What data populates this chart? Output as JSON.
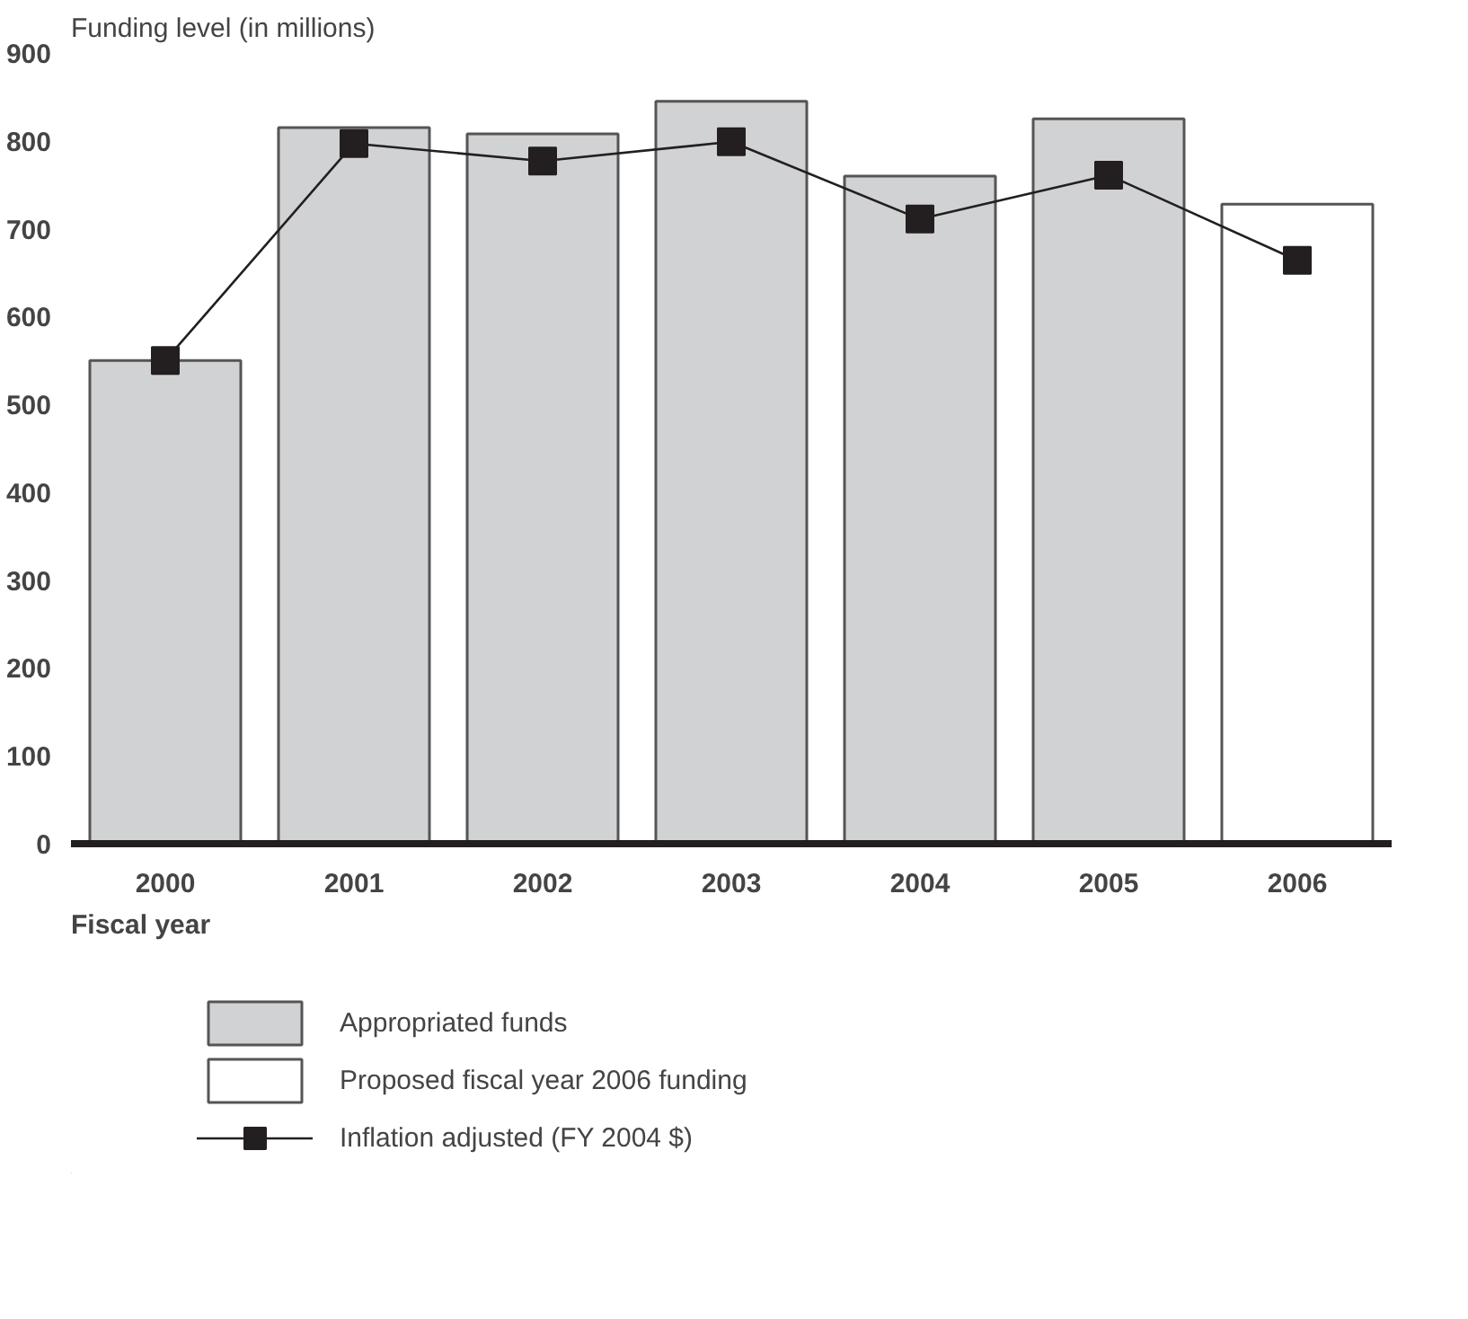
{
  "chart_data": {
    "type": "bar",
    "title": "Funding level (in millions)",
    "xlabel": "Fiscal year",
    "categories": [
      "2000",
      "2001",
      "2002",
      "2003",
      "2004",
      "2005",
      "2006"
    ],
    "series": [
      {
        "name": "Appropriated funds",
        "color": "#d1d2d4",
        "values": [
          550,
          815,
          808,
          845,
          760,
          825,
          null
        ]
      },
      {
        "name": "Proposed fiscal year 2006 funding",
        "color": "#ffffff",
        "values": [
          null,
          null,
          null,
          null,
          null,
          null,
          728
        ]
      },
      {
        "name": "Inflation adjusted (FY 2004 $)",
        "type": "line",
        "color": "#231f20",
        "marker": "square",
        "values": [
          550,
          797,
          777,
          799,
          711,
          761,
          664
        ]
      }
    ],
    "ylim": [
      0,
      900
    ],
    "yticks": [
      0,
      100,
      200,
      300,
      400,
      500,
      600,
      700,
      800,
      900
    ],
    "grid": false,
    "legend": "bottom"
  }
}
